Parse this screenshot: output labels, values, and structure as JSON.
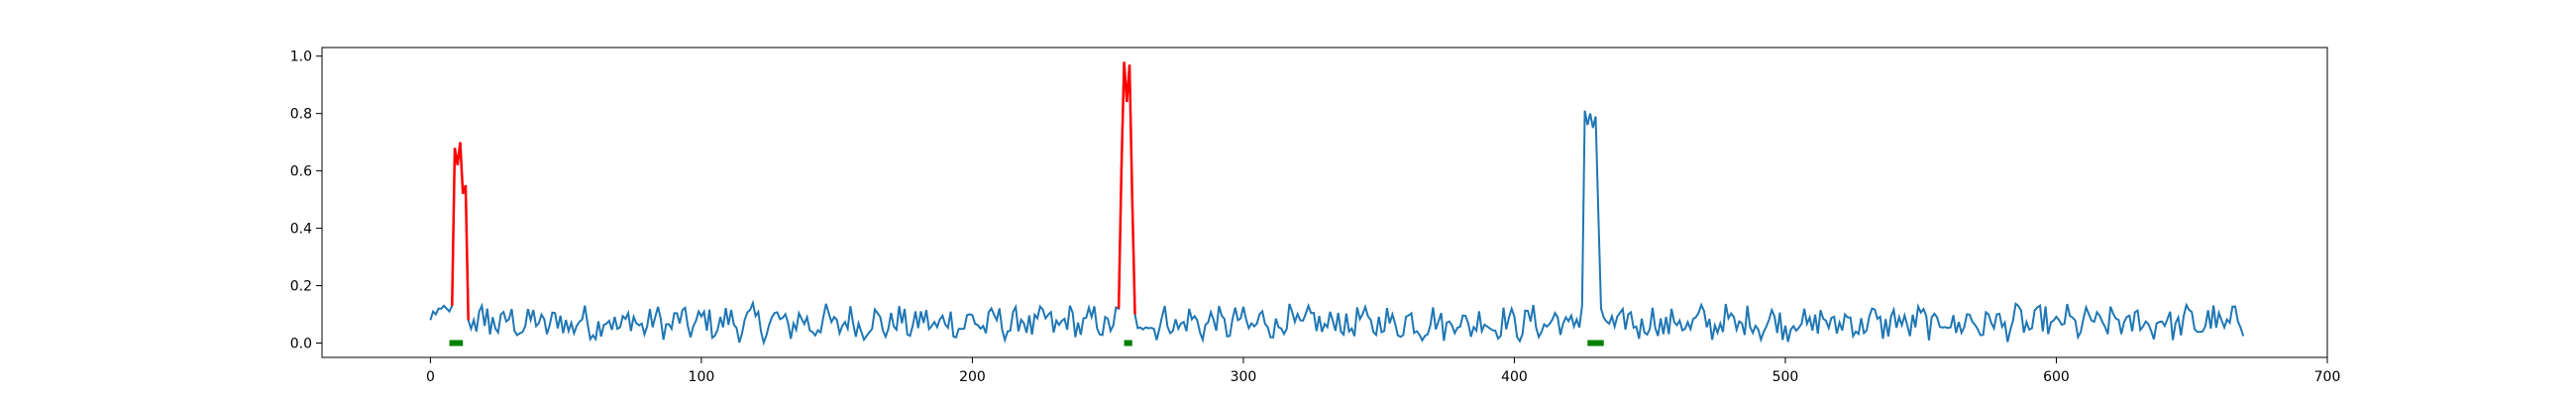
{
  "chart_data": {
    "type": "line",
    "title": "",
    "xlabel": "",
    "ylabel": "",
    "xlim": [
      -40,
      700
    ],
    "ylim": [
      -0.05,
      1.03
    ],
    "x_ticks": [
      0,
      100,
      200,
      300,
      400,
      500,
      600,
      700
    ],
    "x_tick_labels": [
      "0",
      "100",
      "200",
      "300",
      "400",
      "500",
      "600",
      "700"
    ],
    "y_ticks": [
      0.0,
      0.2,
      0.4,
      0.6,
      0.8,
      1.0
    ],
    "y_tick_labels": [
      "0.0",
      "0.2",
      "0.4",
      "0.6",
      "0.8",
      "1.0"
    ],
    "grid": false,
    "legend": false,
    "colors": {
      "main": "#1f77b4",
      "anomaly": "#ff0000",
      "marker": "#008000",
      "axes": "#000000"
    },
    "series": [
      {
        "role": "signal",
        "n_points": 670,
        "baseline": 0.07,
        "noise_amplitude": 0.05,
        "color": "#1f77b4",
        "segments": [
          {
            "x": [
              0,
              1,
              2,
              3,
              4,
              5,
              6,
              7,
              8
            ],
            "y": [
              0.08,
              0.11,
              0.1,
              0.12,
              0.12,
              0.13,
              0.12,
              0.11,
              0.13
            ]
          },
          {
            "x": [
              14,
              15,
              16,
              17,
              18,
              19,
              20,
              21,
              22,
              23,
              24
            ],
            "y": [
              0.02,
              0.05,
              0.08,
              0.04,
              0.11,
              0.13,
              0.06,
              0.12,
              0.03,
              0.09,
              0.05
            ]
          },
          {
            "x": [
              425,
              426,
              427,
              428,
              429,
              430,
              431,
              432
            ],
            "y": [
              0.13,
              0.81,
              0.76,
              0.8,
              0.75,
              0.79,
              0.45,
              0.12
            ]
          }
        ]
      },
      {
        "role": "anomaly",
        "color": "#ff0000",
        "segments": [
          {
            "x": [
              8,
              9,
              10,
              11,
              12,
              13,
              14
            ],
            "y": [
              0.13,
              0.68,
              0.62,
              0.7,
              0.52,
              0.55,
              0.08
            ]
          },
          {
            "x": [
              254,
              255,
              256,
              257,
              258,
              259,
              260
            ],
            "y": [
              0.12,
              0.6,
              0.98,
              0.84,
              0.97,
              0.5,
              0.1
            ]
          }
        ]
      }
    ],
    "markers": {
      "color": "#008000",
      "y": 0.0,
      "ranges": [
        [
          7,
          12
        ],
        [
          256,
          259
        ],
        [
          427,
          433
        ]
      ]
    }
  }
}
